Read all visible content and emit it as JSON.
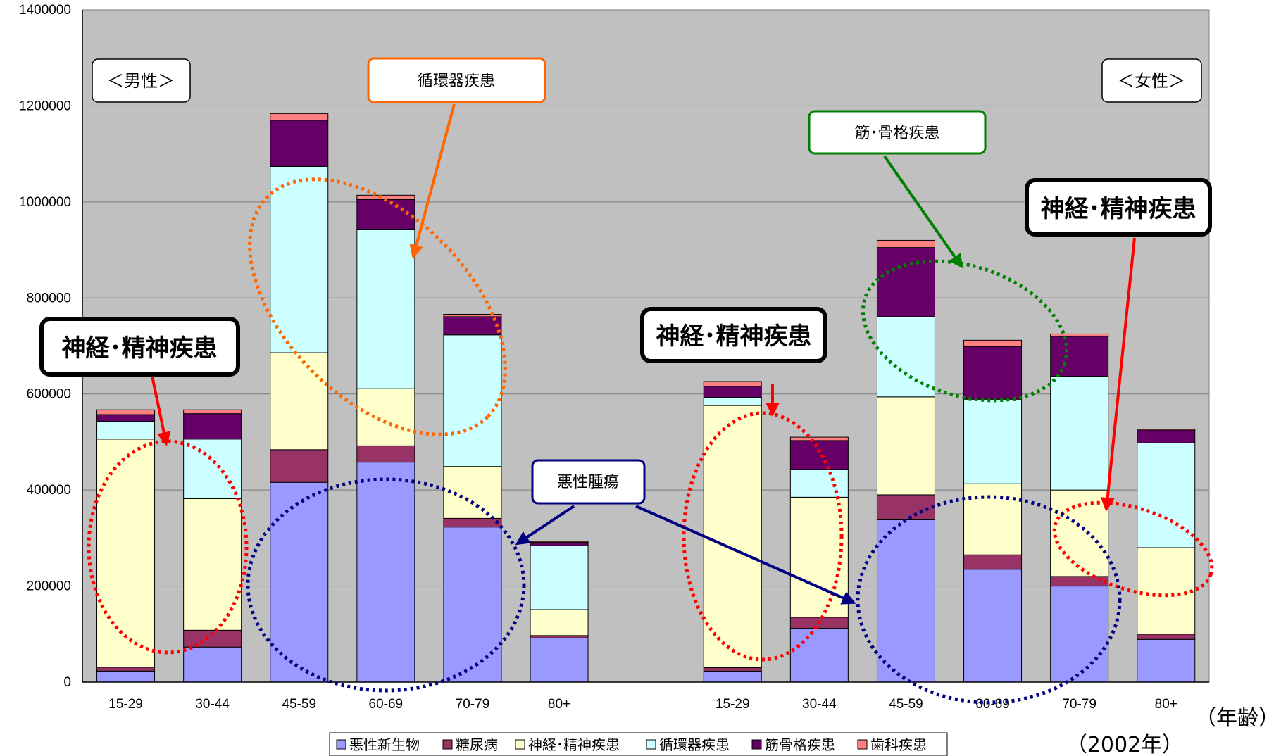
{
  "chart_data": {
    "type": "bar",
    "stacked": true,
    "ylim": [
      0,
      1400000
    ],
    "yticks": [
      "0",
      "200000",
      "400000",
      "600000",
      "800000",
      "1000000",
      "1200000",
      "1400000"
    ],
    "grid": true,
    "legend_position": "bottom",
    "groups": [
      {
        "label": "＜男性＞",
        "categories": [
          "15-29",
          "30-44",
          "45-59",
          "60-69",
          "70-79",
          "80+"
        ]
      },
      {
        "label": "＜女性＞",
        "categories": [
          "15-29",
          "30-44",
          "45-59",
          "60-69",
          "70-79",
          "80+"
        ]
      }
    ],
    "series": [
      {
        "name": "悪性新生物",
        "color": "#9999ff",
        "male": [
          23000,
          73000,
          416000,
          458000,
          323000,
          92000
        ],
        "female": [
          23000,
          112000,
          338000,
          235000,
          200000,
          89000
        ]
      },
      {
        "name": "糖尿病",
        "color": "#993366",
        "male": [
          8000,
          35000,
          68000,
          34000,
          18000,
          5000
        ],
        "female": [
          7000,
          23000,
          52000,
          30000,
          20000,
          11000
        ]
      },
      {
        "name": "神経･精神疾患",
        "color": "#ffffcc",
        "male": [
          475000,
          274000,
          202000,
          119000,
          108000,
          54000
        ],
        "female": [
          546000,
          250000,
          204000,
          148000,
          180000,
          180000
        ]
      },
      {
        "name": "循環器疾患",
        "color": "#ccffff",
        "male": [
          37000,
          124000,
          388000,
          331000,
          274000,
          133000
        ],
        "female": [
          17000,
          58000,
          167000,
          176000,
          237000,
          218000
        ]
      },
      {
        "name": "筋骨格疾患",
        "color": "#660066",
        "male": [
          14000,
          53000,
          96000,
          63000,
          38000,
          7000
        ],
        "female": [
          23000,
          60000,
          144000,
          110000,
          83000,
          27000
        ]
      },
      {
        "name": "歯科疾患",
        "color": "#ff8080",
        "male": [
          10000,
          8000,
          14000,
          9000,
          5000,
          2000
        ],
        "female": [
          10000,
          7000,
          15000,
          13000,
          5000,
          2000
        ]
      }
    ],
    "annotations": {
      "circulatory": "循環器疾患",
      "musculoskeletal": "筋･骨格疾患",
      "neuro": "神経･精神疾患",
      "cancer": "悪性腫瘍"
    },
    "xlabel": "（年齢）",
    "year_note": "（2002年）",
    "colors": {
      "plot_bg": "#c0c0c0",
      "arrow_orange": "#ff6600",
      "arrow_green": "#008000",
      "arrow_red": "#ff0000",
      "arrow_navy": "#000080"
    }
  }
}
